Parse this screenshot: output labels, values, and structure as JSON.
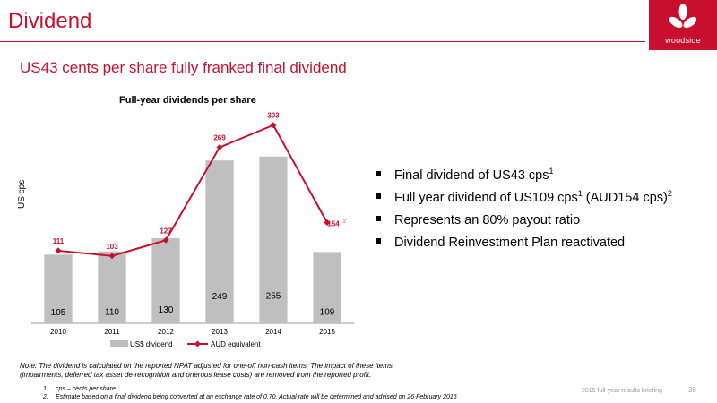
{
  "header": {
    "title": "Dividend",
    "subtitle": "US43 cents per share fully franked final dividend",
    "logo_text": "woodside"
  },
  "chart_data": {
    "type": "bar",
    "title": "Full-year dividends per share",
    "ylabel": "US cps",
    "xlabel": "",
    "categories": [
      "2010",
      "2011",
      "2012",
      "2013",
      "2014",
      "2015"
    ],
    "series": [
      {
        "name": "US$ dividend",
        "type": "bar",
        "values": [
          105,
          110,
          130,
          249,
          255,
          109
        ],
        "color": "#bfbfbf"
      },
      {
        "name": "AUD equivalent",
        "type": "line",
        "values": [
          111,
          103,
          127,
          269,
          303,
          154
        ],
        "value_labels": [
          "111",
          "103",
          "127",
          "269",
          "303",
          "154"
        ],
        "color": "#c8102e"
      }
    ],
    "annotations": [
      {
        "category": "2015",
        "series": "AUD equivalent",
        "superscript": "2"
      }
    ],
    "ylim": [
      0,
      330
    ],
    "grid": false,
    "legend_position": "bottom"
  },
  "bullets": [
    {
      "text": "Final dividend of US43 cps",
      "sup": "1",
      "text2": "",
      "sup2": ""
    },
    {
      "text": "Full year dividend of US109 cps",
      "sup": "1",
      "text2": " (AUD154 cps)",
      "sup2": "2"
    },
    {
      "text": "Represents an 80% payout ratio",
      "sup": "",
      "text2": "",
      "sup2": ""
    },
    {
      "text": "Dividend Reinvestment Plan reactivated",
      "sup": "",
      "text2": "",
      "sup2": ""
    }
  ],
  "note": {
    "line1": "Note: The dividend is calculated on the reported NPAT adjusted for one-off non-cash items. The impact of these items",
    "line2": "(impairments, deferred tax asset de-recognition and onerous lease costs) are removed from the reported profit."
  },
  "footnotes": [
    {
      "num": "1.",
      "text": "cps – cents per share"
    },
    {
      "num": "2.",
      "text": "Estimate based on a final dividend being converted at an exchange rate of 0.70. Actual rate will be determined and advised on 26 February 2016"
    }
  ],
  "footer": {
    "text": "2015 full-year results briefing",
    "page": "38"
  }
}
